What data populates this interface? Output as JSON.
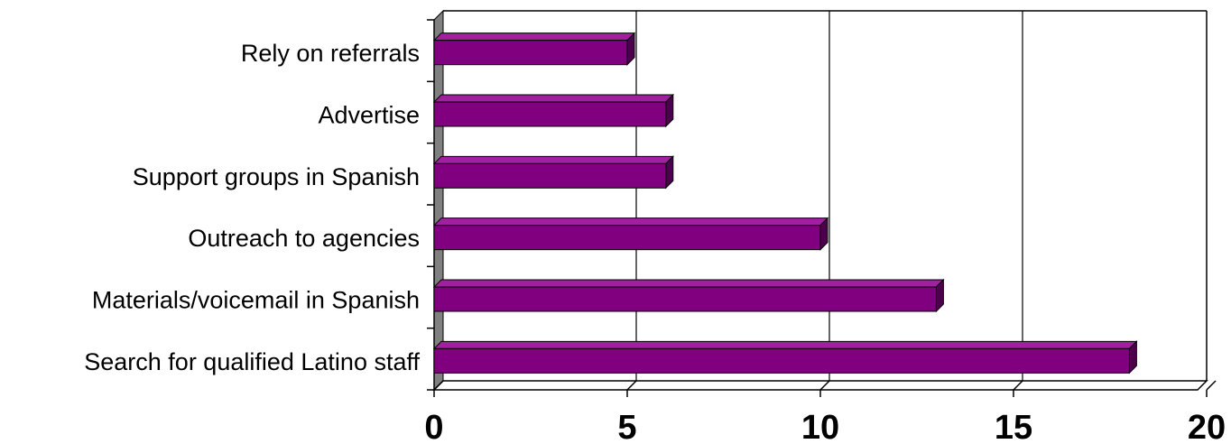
{
  "chart_data": {
    "type": "bar",
    "orientation": "horizontal",
    "categories": [
      "Rely on referrals",
      "Advertise",
      "Support groups in Spanish",
      "Outreach to agencies",
      "Materials/voicemail in Spanish",
      "Search for qualified Latino staff"
    ],
    "values": [
      5,
      6,
      6,
      10,
      13,
      18
    ],
    "xlim": [
      0,
      20
    ],
    "xticks": [
      "0",
      "5",
      "10",
      "15",
      "20"
    ],
    "grid": "vertical",
    "legend": "none",
    "style_3d": true,
    "colors": {
      "bar_front": "#800080",
      "bar_top": "#a020a0",
      "bar_side": "#4d004d",
      "bar_outline": "#000000",
      "wall": "#808080",
      "grid": "#000000"
    }
  }
}
